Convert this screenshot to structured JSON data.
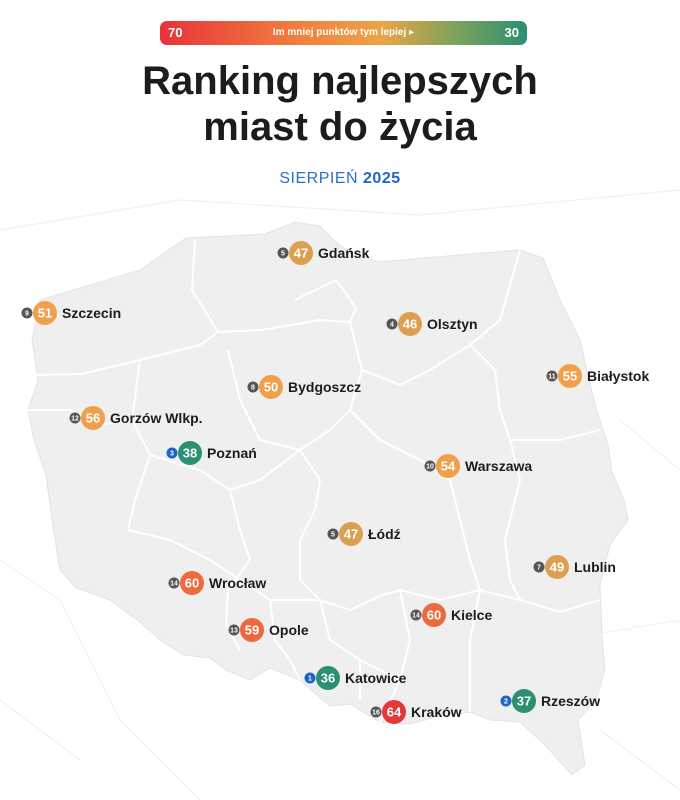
{
  "header": {
    "scale_min": "70",
    "scale_hint": "Im mniej punktów tym lepiej ▸",
    "scale_max": "30",
    "title_line1": "Ranking najlepszych",
    "title_line2": "miast do życia",
    "subtitle_month": "SIERPIEŃ",
    "subtitle_year": "2025"
  },
  "colors": {
    "best": "#2b8f72",
    "good": "#dba04f",
    "mid": "#f0a04a",
    "worse": "#ec6a3e",
    "worst": "#e5383b",
    "rank_top": "#1e64c8",
    "rank_default": "#555555",
    "map_fill": "#efefef",
    "border": "#ffffff"
  },
  "cities": [
    {
      "name": "Gdańsk",
      "score": "47",
      "rank": "5",
      "color": "#dba04f"
    },
    {
      "name": "Szczecin",
      "score": "51",
      "rank": "9",
      "color": "#f0a04a"
    },
    {
      "name": "Olsztyn",
      "score": "46",
      "rank": "4",
      "color": "#dba04f"
    },
    {
      "name": "Białystok",
      "score": "55",
      "rank": "11",
      "color": "#f0a04a"
    },
    {
      "name": "Bydgoszcz",
      "score": "50",
      "rank": "8",
      "color": "#f0a04a"
    },
    {
      "name": "Gorzów Wlkp.",
      "score": "56",
      "rank": "12",
      "color": "#f0a04a"
    },
    {
      "name": "Poznań",
      "score": "38",
      "rank": "3",
      "color": "#2b8f72"
    },
    {
      "name": "Warszawa",
      "score": "54",
      "rank": "10",
      "color": "#f0a04a"
    },
    {
      "name": "Łódź",
      "score": "47",
      "rank": "5",
      "color": "#dba04f"
    },
    {
      "name": "Lublin",
      "score": "49",
      "rank": "7",
      "color": "#dba04f"
    },
    {
      "name": "Wrocław",
      "score": "60",
      "rank": "14",
      "color": "#ec6a3e"
    },
    {
      "name": "Kielce",
      "score": "60",
      "rank": "14",
      "color": "#ec6a3e"
    },
    {
      "name": "Opole",
      "score": "59",
      "rank": "13",
      "color": "#ec6a3e"
    },
    {
      "name": "Katowice",
      "score": "36",
      "rank": "1",
      "color": "#2b8f72"
    },
    {
      "name": "Rzeszów",
      "score": "37",
      "rank": "2",
      "color": "#2b8f72"
    },
    {
      "name": "Kraków",
      "score": "64",
      "rank": "16",
      "color": "#e5383b"
    }
  ]
}
